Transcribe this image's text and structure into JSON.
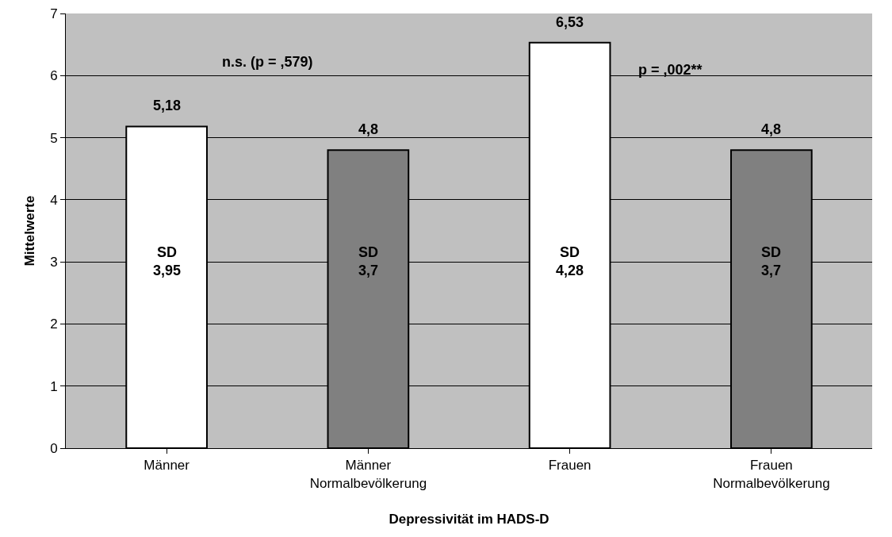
{
  "chart_data": {
    "type": "bar",
    "xlabel": "Depressivität im HADS-D",
    "ylabel": "Mittelwerte",
    "categories": [
      "Männer",
      "Männer\nNormalbevölkerung",
      "Frauen",
      "Frauen\nNormalbevölkerung"
    ],
    "values": [
      5.18,
      4.8,
      6.53,
      4.8
    ],
    "colors": [
      "#ffffff",
      "#808080",
      "#ffffff",
      "#808080"
    ],
    "value_labels": [
      "5,18",
      "4,8",
      "6,53",
      "4,8"
    ],
    "ylim": [
      0,
      7
    ],
    "yticks": [
      0,
      1,
      2,
      3,
      4,
      5,
      6,
      7
    ],
    "grid": "y",
    "annotations": [
      "SD\n3,95",
      "SD\n3,7",
      "SD\n4,28",
      "SD\n3,7",
      "n.s. (p = ,579)",
      "p = ,002**"
    ]
  }
}
